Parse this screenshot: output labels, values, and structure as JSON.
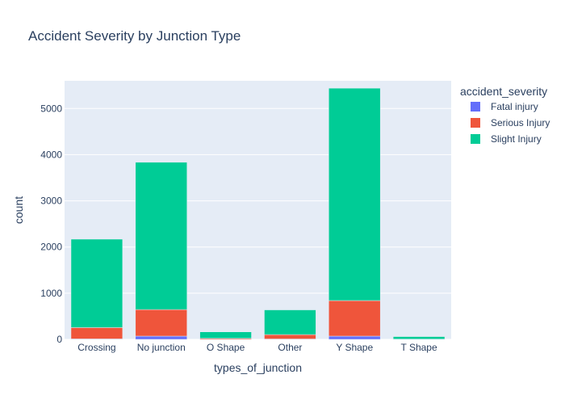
{
  "chart_data": {
    "type": "bar",
    "barmode": "stack",
    "title": "Accident Severity by Junction Type",
    "xlabel": "types_of_junction",
    "ylabel": "count",
    "ylim": [
      0,
      5600
    ],
    "yticks": [
      0,
      1000,
      2000,
      3000,
      4000,
      5000
    ],
    "categories": [
      "Crossing",
      "No junction",
      "O Shape",
      "Other",
      "Y Shape",
      "T Shape"
    ],
    "legend_title": "accident_severity",
    "legend_position": "right",
    "grid": true,
    "series": [
      {
        "name": "Fatal injury",
        "color": "#636efa",
        "values": [
          10,
          70,
          2,
          8,
          70,
          1
        ]
      },
      {
        "name": "Serious Injury",
        "color": "#ef553b",
        "values": [
          245,
          575,
          20,
          95,
          770,
          5
        ]
      },
      {
        "name": "Slight Injury",
        "color": "#00cc96",
        "values": [
          1915,
          3190,
          140,
          535,
          4600,
          54
        ]
      }
    ]
  }
}
